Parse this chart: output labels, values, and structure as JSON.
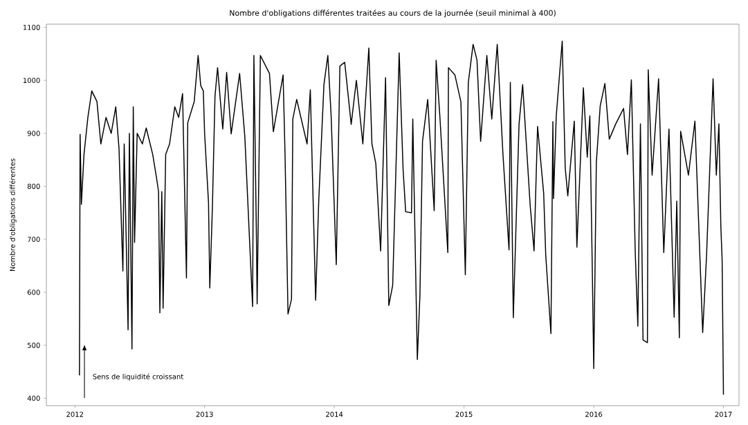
{
  "chart_data": {
    "type": "line",
    "title": "Nombre d'obligations différentes traitées au cours de la journée (seuil minimal à 400)",
    "ylabel": "Nombre d'obligations différentes",
    "annotations": [
      "Sens de liquidité croissant"
    ],
    "xlim": [
      2011.78,
      2017.12
    ],
    "ylim": [
      386,
      1106
    ],
    "xticks": [
      2012,
      2013,
      2014,
      2015,
      2016,
      2017
    ],
    "yticks": [
      400,
      500,
      600,
      700,
      800,
      900,
      1000,
      1100
    ],
    "grid": false,
    "series": [
      {
        "color": "#000000",
        "x": [
          2012.035,
          2012.04,
          2012.05,
          2012.07,
          2012.1,
          2012.13,
          2012.17,
          2012.2,
          2012.24,
          2012.28,
          2012.315,
          2012.34,
          2012.37,
          2012.38,
          2012.41,
          2012.42,
          2012.44,
          2012.45,
          2012.46,
          2012.48,
          2012.52,
          2012.55,
          2012.6,
          2012.63,
          2012.645,
          2012.655,
          2012.67,
          2012.68,
          2012.7,
          2012.73,
          2012.77,
          2012.8,
          2012.83,
          2012.86,
          2012.87,
          2012.92,
          2012.95,
          2012.97,
          2012.99,
          2013.0,
          2013.03,
          2013.04,
          2013.06,
          2013.08,
          2013.1,
          2013.14,
          2013.17,
          2013.205,
          2013.27,
          2013.31,
          2013.37,
          2013.38,
          2013.4,
          2013.405,
          2013.43,
          2013.5,
          2013.53,
          2013.605,
          2013.62,
          2013.643,
          2013.67,
          2013.68,
          2013.71,
          2013.79,
          2013.815,
          2013.856,
          2013.88,
          2013.92,
          2013.95,
          2013.975,
          2014.015,
          2014.043,
          2014.08,
          2014.13,
          2014.17,
          2014.22,
          2014.266,
          2014.29,
          2014.32,
          2014.357,
          2014.395,
          2014.42,
          2014.45,
          2014.5,
          2014.53,
          2014.55,
          2014.595,
          2014.605,
          2014.64,
          2014.66,
          2014.68,
          2014.72,
          2014.77,
          2014.785,
          2014.815,
          2014.875,
          2014.88,
          2014.93,
          2014.976,
          2015.01,
          2015.033,
          2015.07,
          2015.1,
          2015.128,
          2015.176,
          2015.214,
          2015.256,
          2015.3,
          2015.347,
          2015.357,
          2015.38,
          2015.424,
          2015.452,
          2015.51,
          2015.54,
          2015.567,
          2015.614,
          2015.63,
          2015.67,
          2015.685,
          2015.69,
          2015.711,
          2015.757,
          2015.78,
          2015.8,
          2015.85,
          2015.87,
          2015.92,
          2015.95,
          2015.97,
          2015.99,
          2016.0,
          2016.01,
          2016.02,
          2016.05,
          2016.086,
          2016.12,
          2016.17,
          2016.23,
          2016.26,
          2016.29,
          2016.32,
          2016.34,
          2016.36,
          2016.38,
          2016.414,
          2016.42,
          2016.45,
          2016.5,
          2016.54,
          2016.58,
          2016.62,
          2016.64,
          2016.66,
          2016.67,
          2016.73,
          2016.78,
          2016.84,
          2016.87,
          2016.92,
          2016.945,
          2016.965,
          2016.98,
          2016.99,
          2017.0
        ],
        "values": [
          443,
          898,
          766,
          860,
          930,
          980,
          960,
          880,
          930,
          900,
          950,
          872,
          640,
          880,
          529,
          900,
          493,
          950,
          694,
          900,
          880,
          910,
          860,
          815,
          790,
          561,
          790,
          570,
          860,
          880,
          950,
          930,
          975,
          627,
          920,
          960,
          1047,
          990,
          980,
          900,
          770,
          608,
          760,
          970,
          1024,
          908,
          1015,
          899,
          1013,
          894,
          573,
          1047,
          694,
          578,
          1047,
          1013,
          903,
          1010,
          861,
          559,
          587,
          927,
          964,
          880,
          982,
          585,
          773,
          992,
          1047,
          936,
          652,
          1027,
          1034,
          917,
          1000,
          880,
          1061,
          880,
          843,
          678,
          1005,
          575,
          613,
          1052,
          833,
          752,
          750,
          927,
          473,
          594,
          885,
          964,
          754,
          1038,
          927,
          675,
          1024,
          1010,
          959,
          633,
          996,
          1068,
          1038,
          885,
          1047,
          927,
          1068,
          861,
          680,
          996,
          552,
          917,
          992,
          764,
          678,
          913,
          787,
          670,
          522,
          922,
          777,
          933,
          1074,
          835,
          782,
          923,
          685,
          986,
          855,
          933,
          626,
          456,
          646,
          845,
          952,
          994,
          889,
          918,
          947,
          860,
          1001,
          675,
          536,
          918,
          510,
          505,
          1020,
          821,
          1003,
          675,
          908,
          553,
          772,
          514,
          904,
          821,
          923,
          524,
          670,
          1003,
          821,
          918,
          724,
          660,
          407
        ]
      }
    ]
  }
}
